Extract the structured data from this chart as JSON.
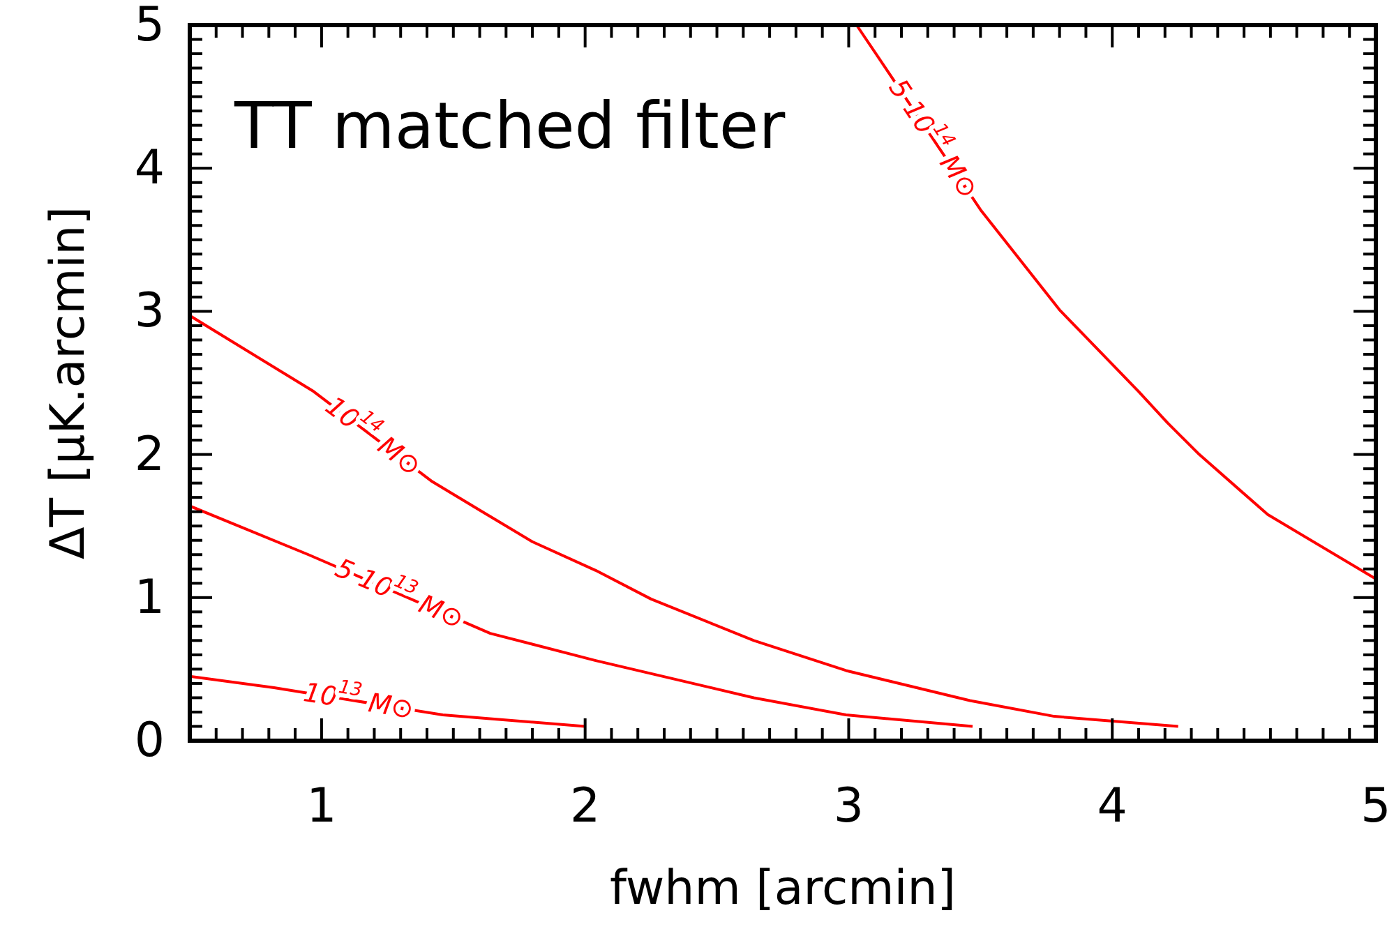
{
  "chart_data": {
    "type": "line",
    "title": "TT matched filter",
    "xlabel": "fwhm [arcmin]",
    "ylabel": "ΔT [μK.arcmin]",
    "xlim": [
      0.5,
      5
    ],
    "ylim": [
      0,
      5
    ],
    "xticks": [
      {
        "value": 0.6,
        "label": null
      },
      {
        "value": 0.7,
        "label": null
      },
      {
        "value": 0.8,
        "label": null
      },
      {
        "value": 0.9,
        "label": null
      },
      1,
      {
        "value": 1.1,
        "label": null
      },
      {
        "value": 1.2,
        "label": null
      },
      {
        "value": 1.3,
        "label": null
      },
      {
        "value": 1.4,
        "label": null
      },
      {
        "value": 1.5,
        "label": null
      },
      {
        "value": 1.6,
        "label": null
      },
      {
        "value": 1.7,
        "label": null
      },
      {
        "value": 1.8,
        "label": null
      },
      {
        "value": 1.9,
        "label": null
      },
      2,
      {
        "value": 2.1,
        "label": null
      },
      {
        "value": 2.2,
        "label": null
      },
      {
        "value": 2.3,
        "label": null
      },
      {
        "value": 2.4,
        "label": null
      },
      {
        "value": 2.5,
        "label": null
      },
      {
        "value": 2.6,
        "label": null
      },
      {
        "value": 2.7,
        "label": null
      },
      {
        "value": 2.8,
        "label": null
      },
      {
        "value": 2.9,
        "label": null
      },
      3,
      {
        "value": 3.1,
        "label": null
      },
      {
        "value": 3.2,
        "label": null
      },
      {
        "value": 3.3,
        "label": null
      },
      {
        "value": 3.4,
        "label": null
      },
      {
        "value": 3.5,
        "label": null
      },
      {
        "value": 3.6,
        "label": null
      },
      {
        "value": 3.7,
        "label": null
      },
      {
        "value": 3.8,
        "label": null
      },
      {
        "value": 3.9,
        "label": null
      },
      4,
      {
        "value": 4.1,
        "label": null
      },
      {
        "value": 4.2,
        "label": null
      },
      {
        "value": 4.3,
        "label": null
      },
      {
        "value": 4.4,
        "label": null
      },
      {
        "value": 4.5,
        "label": null
      },
      {
        "value": 4.6,
        "label": null
      },
      {
        "value": 4.7,
        "label": null
      },
      {
        "value": 4.8,
        "label": null
      },
      {
        "value": 4.9,
        "label": null
      },
      5
    ],
    "yticks": [
      0,
      {
        "value": 0.1,
        "label": null
      },
      {
        "value": 0.2,
        "label": null
      },
      {
        "value": 0.3,
        "label": null
      },
      {
        "value": 0.4,
        "label": null
      },
      {
        "value": 0.5,
        "label": null
      },
      {
        "value": 0.6,
        "label": null
      },
      {
        "value": 0.7,
        "label": null
      },
      {
        "value": 0.8,
        "label": null
      },
      {
        "value": 0.9,
        "label": null
      },
      1,
      {
        "value": 1.1,
        "label": null
      },
      {
        "value": 1.2,
        "label": null
      },
      {
        "value": 1.3,
        "label": null
      },
      {
        "value": 1.4,
        "label": null
      },
      {
        "value": 1.5,
        "label": null
      },
      {
        "value": 1.6,
        "label": null
      },
      {
        "value": 1.7,
        "label": null
      },
      {
        "value": 1.8,
        "label": null
      },
      {
        "value": 1.9,
        "label": null
      },
      2,
      {
        "value": 2.1,
        "label": null
      },
      {
        "value": 2.2,
        "label": null
      },
      {
        "value": 2.3,
        "label": null
      },
      {
        "value": 2.4,
        "label": null
      },
      {
        "value": 2.5,
        "label": null
      },
      {
        "value": 2.6,
        "label": null
      },
      {
        "value": 2.7,
        "label": null
      },
      {
        "value": 2.8,
        "label": null
      },
      {
        "value": 2.9,
        "label": null
      },
      3,
      {
        "value": 3.1,
        "label": null
      },
      {
        "value": 3.2,
        "label": null
      },
      {
        "value": 3.3,
        "label": null
      },
      {
        "value": 3.4,
        "label": null
      },
      {
        "value": 3.5,
        "label": null
      },
      {
        "value": 3.6,
        "label": null
      },
      {
        "value": 3.7,
        "label": null
      },
      {
        "value": 3.8,
        "label": null
      },
      {
        "value": 3.9,
        "label": null
      },
      4,
      {
        "value": 4.1,
        "label": null
      },
      {
        "value": 4.2,
        "label": null
      },
      {
        "value": 4.3,
        "label": null
      },
      {
        "value": 4.4,
        "label": null
      },
      {
        "value": 4.5,
        "label": null
      },
      {
        "value": 4.6,
        "label": null
      },
      {
        "value": 4.7,
        "label": null
      },
      {
        "value": 4.8,
        "label": null
      },
      {
        "value": 4.9,
        "label": null
      },
      5
    ],
    "grid": false,
    "marker": "none",
    "line_style": "solid",
    "series": [
      {
        "name": "10$^{14}$ M⊙",
        "color": "#ff0000",
        "x": [
          0.5,
          0.97,
          1.42,
          1.61,
          1.8,
          2.04,
          2.25,
          2.64,
          2.99,
          3.46,
          3.78,
          4.25
        ],
        "values": [
          2.97,
          2.44,
          1.81,
          1.6,
          1.39,
          1.19,
          0.99,
          0.7,
          0.49,
          0.28,
          0.17,
          0.1
        ]
      },
      {
        "name": "5 10$^{13}$ M⊙",
        "color": "#ff0000",
        "x": [
          0.5,
          0.95,
          1.64,
          2.04,
          2.64,
          2.99,
          3.47
        ],
        "values": [
          1.64,
          1.3,
          0.75,
          0.56,
          0.3,
          0.18,
          0.1
        ]
      },
      {
        "name": "10$^{13}$ M⊙",
        "color": "#ff0000",
        "x": [
          0.5,
          0.82,
          1.46,
          2.0
        ],
        "values": [
          0.45,
          0.37,
          0.18,
          0.1
        ]
      },
      {
        "name": "5 10$^{14}$ M⊙",
        "color": "#ff0000",
        "x": [
          3.03,
          3.14,
          3.5,
          3.8,
          4.1,
          4.21,
          4.33,
          4.59,
          5.0
        ],
        "values": [
          5.0,
          4.7,
          3.71,
          3.01,
          2.44,
          2.22,
          2.0,
          1.58,
          1.13
        ]
      }
    ]
  }
}
